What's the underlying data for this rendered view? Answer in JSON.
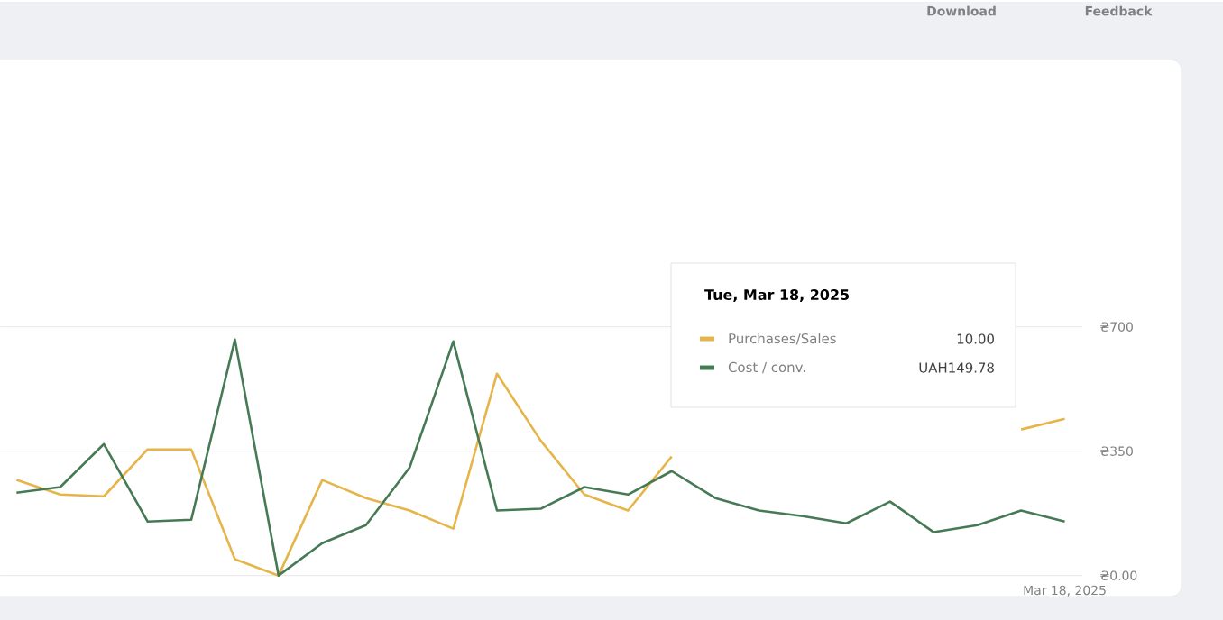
{
  "chart_data": {
    "type": "line",
    "legend_title": "Tue, Mar 18, 2025",
    "legend": "top right",
    "grid": "y",
    "annotations": [
      "Download",
      "Feedback",
      "10.00",
      "UAH149.78"
    ],
    "categories": [
      null,
      null,
      null,
      null,
      null,
      null,
      null,
      null,
      null,
      null,
      null,
      null,
      null,
      null,
      null,
      null,
      null,
      null,
      null,
      null,
      null,
      null,
      null,
      null,
      "Mar 18, 2025"
    ],
    "ylim": [
      0,
      700
    ],
    "yticks": [
      {
        "value": 0,
        "label": "₴0.00"
      },
      {
        "value": 350,
        "label": "₴350"
      },
      {
        "value": 700,
        "label": "₴700"
      }
    ],
    "series": [
      {
        "name": "Purchases/Sales",
        "color": "#e6b54a",
        "values": [
          269,
          228,
          223,
          355,
          355,
          46,
          0,
          269,
          218,
          183,
          132,
          568,
          380,
          228,
          183,
          335,
          null,
          null,
          null,
          null,
          null,
          null,
          null,
          411,
          441
        ]
      },
      {
        "name": "Cost / conv.",
        "color": "#467a55",
        "values": [
          233,
          249,
          370,
          152,
          157,
          664,
          0,
          91,
          142,
          304,
          659,
          183,
          188,
          249,
          228,
          294,
          218,
          183,
          167,
          147,
          208,
          122,
          142,
          183,
          152
        ]
      }
    ]
  }
}
